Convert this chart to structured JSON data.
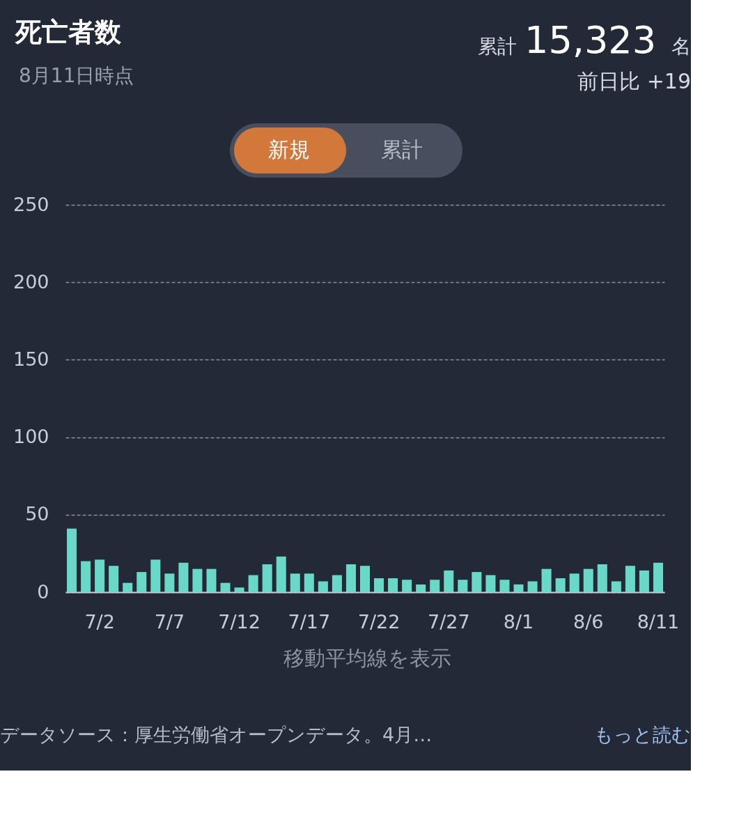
{
  "chart_data": {
    "type": "bar",
    "title": "死亡者数",
    "subtitle": "8月11日時点",
    "categories": [
      null,
      null,
      "7/2",
      null,
      null,
      null,
      null,
      "7/7",
      null,
      null,
      null,
      null,
      "7/12",
      null,
      null,
      null,
      null,
      "7/17",
      null,
      null,
      null,
      null,
      "7/22",
      null,
      null,
      null,
      null,
      "7/27",
      null,
      null,
      null,
      null,
      "8/1",
      null,
      null,
      null,
      null,
      "8/6",
      null,
      null,
      null,
      null,
      "8/11"
    ],
    "values": [
      41,
      20,
      21,
      17,
      6,
      13,
      21,
      12,
      19,
      15,
      15,
      6,
      3,
      11,
      18,
      23,
      12,
      12,
      7,
      11,
      18,
      17,
      9,
      9,
      8,
      5,
      8,
      14,
      8,
      13,
      11,
      8,
      5,
      7,
      15,
      9,
      12,
      15,
      18,
      7,
      17,
      14,
      19
    ],
    "color": "#6ad8c8",
    "ylim": [
      0,
      250
    ],
    "yticks": [
      0,
      50,
      100,
      150,
      200,
      250
    ],
    "grid": "y",
    "annotations": [
      "累計",
      "15,323",
      "名",
      "前日比 +19",
      "新規",
      "累計",
      "移動平均線を表示",
      "データソース：厚生労働省オープンデータ。4月…",
      "もっと読む"
    ]
  }
}
